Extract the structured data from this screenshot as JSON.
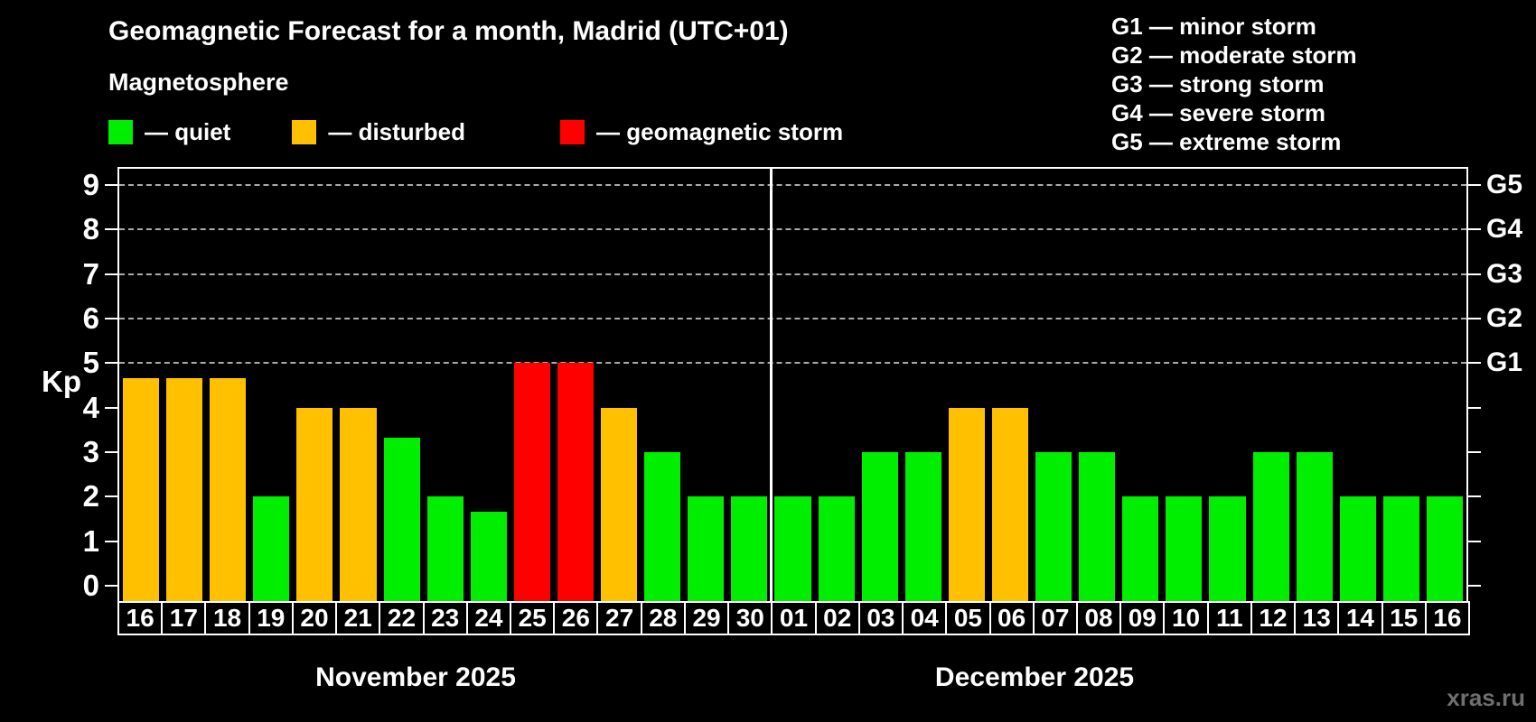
{
  "watermark": "xras.ru",
  "chart_data": {
    "type": "bar",
    "title": "Geomagnetic Forecast for a month, Madrid (UTC+01)",
    "subtitle": "Magnetosphere",
    "ylabel": "Kp",
    "ylim": [
      0,
      9
    ],
    "y_ticks": [
      0,
      1,
      2,
      3,
      4,
      5,
      6,
      7,
      8,
      9
    ],
    "grid_levels": [
      5,
      6,
      7,
      8,
      9
    ],
    "grid_on": true,
    "legend_position": "top-left",
    "right_axis": [
      {
        "kp": 5,
        "label": "G1"
      },
      {
        "kp": 6,
        "label": "G2"
      },
      {
        "kp": 7,
        "label": "G3"
      },
      {
        "kp": 8,
        "label": "G4"
      },
      {
        "kp": 9,
        "label": "G5"
      }
    ],
    "legend": [
      {
        "label": "— quiet",
        "status": "quiet",
        "color": "#00ee00"
      },
      {
        "label": "— disturbed",
        "status": "disturbed",
        "color": "#ffc000"
      },
      {
        "label": "— geomagnetic storm",
        "status": "storm",
        "color": "#ff0000"
      }
    ],
    "g_legend": [
      "G1 — minor storm",
      "G2 — moderate storm",
      "G3 — strong storm",
      "G4 — severe storm",
      "G5 — extreme storm"
    ],
    "months": [
      {
        "label": "November 2025",
        "days": [
          "16",
          "17",
          "18",
          "19",
          "20",
          "21",
          "22",
          "23",
          "24",
          "25",
          "26",
          "27",
          "28",
          "29",
          "30"
        ],
        "kp": [
          4.67,
          4.67,
          4.67,
          2,
          4,
          4,
          3.33,
          2,
          1.67,
          5,
          5,
          4,
          3,
          2,
          2
        ],
        "status": [
          "disturbed",
          "disturbed",
          "disturbed",
          "quiet",
          "disturbed",
          "disturbed",
          "quiet",
          "quiet",
          "quiet",
          "storm",
          "storm",
          "disturbed",
          "quiet",
          "quiet",
          "quiet"
        ]
      },
      {
        "label": "December 2025",
        "days": [
          "01",
          "02",
          "03",
          "04",
          "05",
          "06",
          "07",
          "08",
          "09",
          "10",
          "11",
          "12",
          "13",
          "14",
          "15",
          "16"
        ],
        "kp": [
          2,
          2,
          3,
          3,
          4,
          4,
          3,
          3,
          2,
          2,
          2,
          3,
          3,
          2,
          2,
          2
        ],
        "status": [
          "quiet",
          "quiet",
          "quiet",
          "quiet",
          "disturbed",
          "disturbed",
          "quiet",
          "quiet",
          "quiet",
          "quiet",
          "quiet",
          "quiet",
          "quiet",
          "quiet",
          "quiet",
          "quiet"
        ]
      }
    ],
    "colors": {
      "background": "#000000",
      "axis": "#ffffff",
      "grid": "#aaaaaa",
      "text": "#ffffff",
      "watermark": "#6f6f6f"
    }
  }
}
